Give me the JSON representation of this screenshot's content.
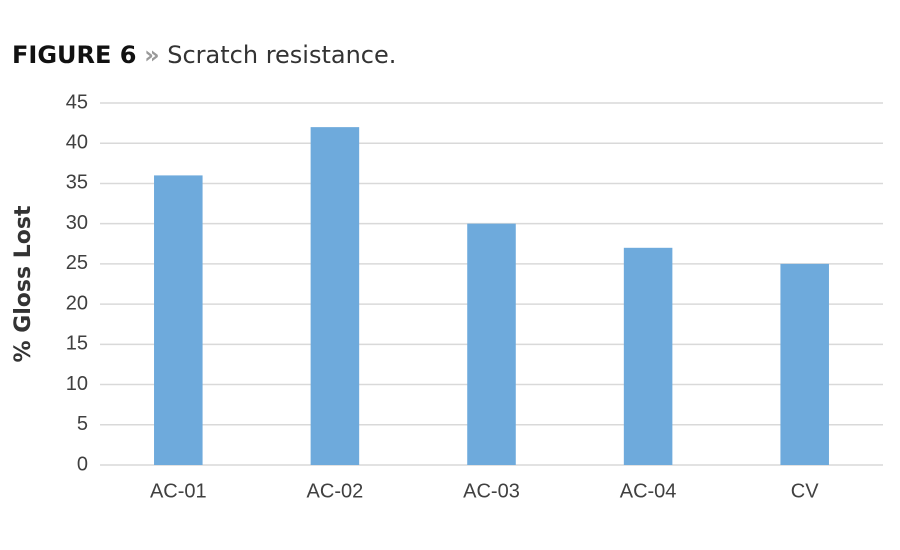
{
  "chart_data": {
    "type": "bar",
    "figure_label": "FIGURE 6",
    "title_separator": "»",
    "title": "Scratch resistance.",
    "y_label": "% Gloss Lost",
    "categories": [
      "AC-01",
      "AC-02",
      "AC-03",
      "AC-04",
      "CV"
    ],
    "values": [
      36,
      42,
      30,
      27,
      25
    ],
    "color": "#6eaadc",
    "ylim": [
      0,
      45
    ],
    "yticks": [
      0,
      5,
      10,
      15,
      20,
      25,
      30,
      35,
      40,
      45
    ],
    "grid": true
  }
}
